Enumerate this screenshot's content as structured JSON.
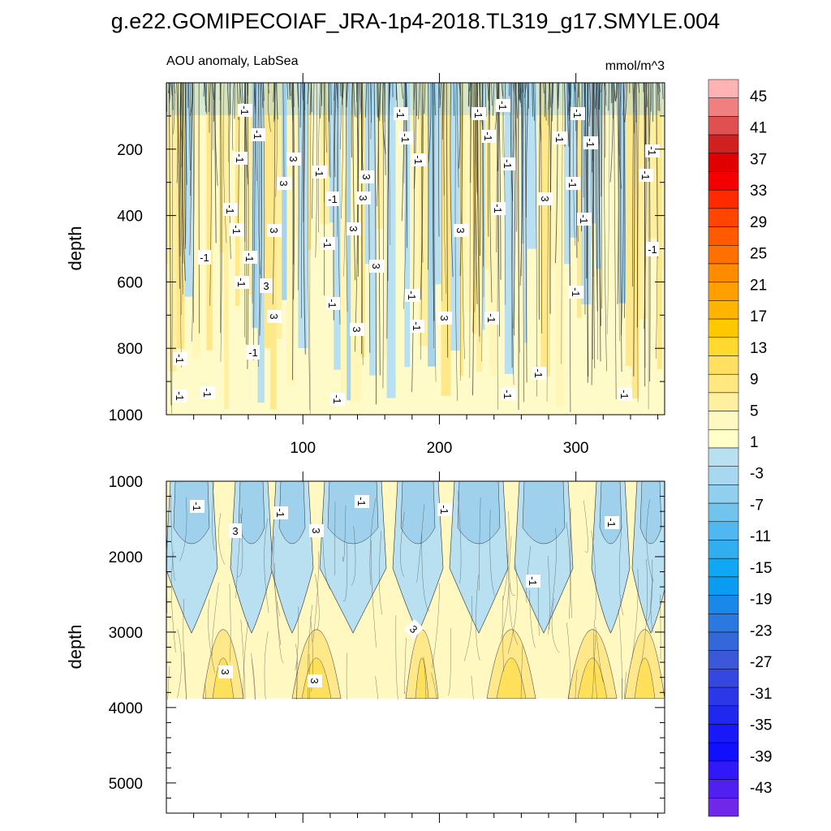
{
  "title": "g.e22.GOMIPECOIAF_JRA-1p4-2018.TL319_g17.SMYLE.004",
  "chart_data": [
    {
      "type": "heatmap",
      "panel": "upper",
      "left_label": "AOU anomaly, LabSea",
      "right_label": "mmol/m^3",
      "xlabel": "",
      "ylabel": "depth",
      "xlim": [
        0,
        365
      ],
      "ylim": [
        1000,
        0
      ],
      "x_ticks": [
        100,
        200,
        300
      ],
      "y_ticks": [
        200,
        400,
        600,
        800,
        1000
      ],
      "contour_labels": [
        "-1",
        "3"
      ],
      "dominant_range": [
        -7,
        5
      ]
    },
    {
      "type": "heatmap",
      "panel": "lower",
      "xlabel": "",
      "ylabel": "depth",
      "xlim": [
        0,
        365
      ],
      "ylim": [
        5400,
        1000
      ],
      "y_ticks": [
        1000,
        2000,
        3000,
        4000,
        5000
      ],
      "data_bottom_depth": 3880,
      "contour_labels": [
        "-1",
        "3"
      ],
      "dominant_range": [
        -7,
        9
      ]
    }
  ],
  "colorbar": {
    "labels": [
      "45",
      "41",
      "37",
      "33",
      "29",
      "25",
      "21",
      "17",
      "13",
      "9",
      "5",
      "1",
      "-3",
      "-7",
      "-11",
      "-15",
      "-19",
      "-23",
      "-27",
      "-31",
      "-35",
      "-39",
      "-43"
    ],
    "colors": [
      "#ffb3b3",
      "#f08080",
      "#e05050",
      "#d02020",
      "#e00000",
      "#f50000",
      "#ff2a00",
      "#ff4500",
      "#ff5a00",
      "#ff7000",
      "#ff8c00",
      "#ffa000",
      "#ffb400",
      "#ffc800",
      "#ffd830",
      "#ffe060",
      "#ffe880",
      "#fff0a0",
      "#fff8c0",
      "#ffffc8",
      "#b8e0f0",
      "#a8d8f0",
      "#90cfee",
      "#70c4ee",
      "#50b8f0",
      "#30aef0",
      "#10a8f4",
      "#0a9cf0",
      "#1a88e8",
      "#2a78e0",
      "#3468d8",
      "#3a58d8",
      "#3448e0",
      "#2a38e8",
      "#2028f0",
      "#1818f8",
      "#1010ff",
      "#3018f8",
      "#5020f0",
      "#7028e8"
    ]
  }
}
